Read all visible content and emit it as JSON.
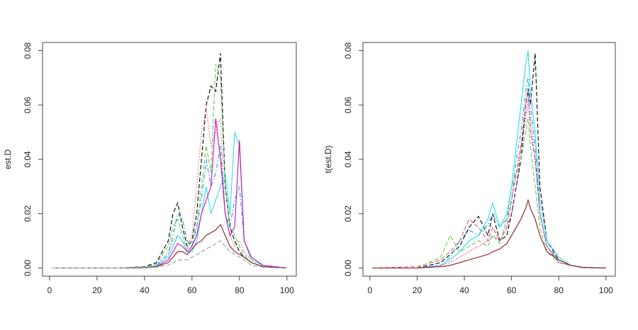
{
  "chart_data": [
    {
      "type": "line",
      "ylabel": "est.D",
      "x": [
        1,
        30,
        40,
        45,
        50,
        52,
        54,
        56,
        58,
        60,
        62,
        64,
        66,
        68,
        70,
        72,
        74,
        76,
        78,
        80,
        82,
        85,
        90,
        100
      ],
      "xlim": [
        -2.96,
        103.96
      ],
      "xticks": [
        0,
        20,
        40,
        60,
        80,
        100
      ],
      "ylim": [
        -0.003,
        0.083
      ],
      "yticks": [
        {
          "value": 0,
          "label": "0.00"
        },
        {
          "value": 0.02,
          "label": "0.02"
        },
        {
          "value": 0.04,
          "label": "0.04"
        },
        {
          "value": 0.06,
          "label": "0.06"
        },
        {
          "value": 0.08,
          "label": "0.08"
        }
      ],
      "series": [
        {
          "color": "#000000",
          "linestyle": "dashed",
          "values": [
            0,
            0,
            0.0005,
            0.002,
            0.01,
            0.02,
            0.024,
            0.015,
            0.008,
            0.01,
            0.02,
            0.04,
            0.06,
            0.067,
            0.065,
            0.079,
            0.03,
            0.015,
            0.01,
            0.006,
            0.004,
            0.002,
            0.0005,
            0
          ]
        },
        {
          "color": "#DF536B",
          "linestyle": "dotted",
          "values": [
            0,
            0,
            0.0003,
            0.001,
            0.006,
            0.01,
            0.012,
            0.01,
            0.008,
            0.012,
            0.03,
            0.05,
            0.059,
            0.045,
            0.05,
            0.055,
            0.02,
            0.012,
            0.008,
            0.01,
            0.006,
            0.003,
            0.001,
            0
          ]
        },
        {
          "color": "#61D04F",
          "linestyle": "dashed",
          "values": [
            0,
            0,
            0.0004,
            0.0015,
            0.008,
            0.015,
            0.018,
            0.012,
            0.007,
            0.01,
            0.015,
            0.03,
            0.045,
            0.035,
            0.075,
            0.07,
            0.03,
            0.015,
            0.012,
            0.008,
            0.005,
            0.002,
            0.0005,
            0
          ]
        },
        {
          "color": "#2297E6",
          "linestyle": "dashdot",
          "values": [
            0,
            0,
            0.0002,
            0.001,
            0.005,
            0.012,
            0.02,
            0.018,
            0.01,
            0.008,
            0.015,
            0.025,
            0.04,
            0.03,
            0.035,
            0.045,
            0.02,
            0.015,
            0.025,
            0.03,
            0.01,
            0.004,
            0.001,
            0
          ]
        },
        {
          "color": "#28E2E5",
          "linestyle": "solid",
          "values": [
            0,
            0,
            0.0002,
            0.0008,
            0.004,
            0.008,
            0.012,
            0.01,
            0.006,
            0.006,
            0.01,
            0.02,
            0.03,
            0.02,
            0.025,
            0.03,
            0.035,
            0.02,
            0.05,
            0.045,
            0.01,
            0.003,
            0.001,
            0
          ]
        },
        {
          "color": "#CD0BBC",
          "linestyle": "solid",
          "values": [
            0,
            0,
            0.0001,
            0.0005,
            0.003,
            0.006,
            0.009,
            0.008,
            0.006,
            0.008,
            0.012,
            0.02,
            0.025,
            0.03,
            0.055,
            0.04,
            0.02,
            0.012,
            0.015,
            0.047,
            0.01,
            0.004,
            0.001,
            0
          ]
        },
        {
          "color": "#8B1A1A",
          "linestyle": "solid",
          "values": [
            0,
            0,
            0.0001,
            0.0005,
            0.002,
            0.004,
            0.006,
            0.006,
            0.005,
            0.007,
            0.009,
            0.01,
            0.012,
            0.013,
            0.014,
            0.016,
            0.012,
            0.008,
            0.006,
            0.005,
            0.004,
            0.002,
            0.0005,
            0
          ]
        },
        {
          "color": "#9E9E9E",
          "linestyle": "dashed",
          "values": [
            0,
            0,
            0.0001,
            0.0003,
            0.001,
            0.002,
            0.003,
            0.003,
            0.003,
            0.004,
            0.005,
            0.006,
            0.007,
            0.008,
            0.009,
            0.01,
            0.008,
            0.006,
            0.005,
            0.004,
            0.003,
            0.001,
            0.0003,
            0
          ]
        }
      ]
    },
    {
      "type": "line",
      "ylabel": "t(est.D)",
      "x": [
        1,
        20,
        30,
        34,
        38,
        42,
        46,
        50,
        52,
        55,
        58,
        60,
        62,
        64,
        66,
        67,
        68,
        70,
        72,
        75,
        80,
        85,
        90,
        100
      ],
      "xlim": [
        -2.96,
        103.96
      ],
      "xticks": [
        0,
        20,
        40,
        60,
        80,
        100
      ],
      "ylim": [
        -0.003,
        0.083
      ],
      "yticks": [
        {
          "value": 0,
          "label": "0.00"
        },
        {
          "value": 0.02,
          "label": "0.02"
        },
        {
          "value": 0.04,
          "label": "0.04"
        },
        {
          "value": 0.06,
          "label": "0.06"
        },
        {
          "value": 0.08,
          "label": "0.08"
        }
      ],
      "series": [
        {
          "color": "#000000",
          "linestyle": "dashed",
          "values": [
            0,
            0,
            0.002,
            0.005,
            0.008,
            0.015,
            0.019,
            0.012,
            0.02,
            0.01,
            0.012,
            0.02,
            0.03,
            0.04,
            0.06,
            0.066,
            0.06,
            0.079,
            0.03,
            0.01,
            0.003,
            0.001,
            0.0003,
            0
          ]
        },
        {
          "color": "#DF536B",
          "linestyle": "dashed",
          "values": [
            0,
            0.0005,
            0.003,
            0.006,
            0.01,
            0.018,
            0.015,
            0.01,
            0.015,
            0.01,
            0.015,
            0.025,
            0.035,
            0.045,
            0.06,
            0.065,
            0.05,
            0.04,
            0.02,
            0.008,
            0.002,
            0.001,
            0.0002,
            0
          ]
        },
        {
          "color": "#61D04F",
          "linestyle": "dashed",
          "values": [
            0,
            0,
            0.004,
            0.012,
            0.006,
            0.008,
            0.01,
            0.008,
            0.012,
            0.009,
            0.018,
            0.03,
            0.035,
            0.04,
            0.05,
            0.055,
            0.045,
            0.03,
            0.015,
            0.006,
            0.002,
            0.001,
            0.0002,
            0
          ]
        },
        {
          "color": "#2297E6",
          "linestyle": "dashdot",
          "values": [
            0,
            0,
            0.001,
            0.004,
            0.01,
            0.014,
            0.012,
            0.016,
            0.02,
            0.015,
            0.018,
            0.025,
            0.04,
            0.05,
            0.065,
            0.07,
            0.06,
            0.045,
            0.02,
            0.008,
            0.003,
            0.001,
            0.0003,
            0
          ]
        },
        {
          "color": "#28E2E5",
          "linestyle": "solid",
          "values": [
            0,
            0,
            0.001,
            0.003,
            0.006,
            0.01,
            0.012,
            0.018,
            0.024,
            0.015,
            0.02,
            0.03,
            0.045,
            0.06,
            0.075,
            0.08,
            0.065,
            0.05,
            0.025,
            0.01,
            0.004,
            0.001,
            0.0002,
            0
          ]
        },
        {
          "color": "#CD0BBC",
          "linestyle": "dotted",
          "values": [
            0,
            0,
            0.001,
            0.002,
            0.004,
            0.006,
            0.008,
            0.01,
            0.012,
            0.01,
            0.015,
            0.02,
            0.03,
            0.045,
            0.055,
            0.062,
            0.055,
            0.04,
            0.02,
            0.008,
            0.002,
            0.001,
            0.0002,
            0
          ]
        },
        {
          "color": "#8B1A1A",
          "linestyle": "solid",
          "values": [
            0,
            0,
            0.0005,
            0.001,
            0.002,
            0.003,
            0.004,
            0.005,
            0.006,
            0.007,
            0.009,
            0.012,
            0.015,
            0.018,
            0.022,
            0.025,
            0.022,
            0.018,
            0.012,
            0.006,
            0.003,
            0.001,
            0.0002,
            0
          ]
        }
      ]
    }
  ]
}
